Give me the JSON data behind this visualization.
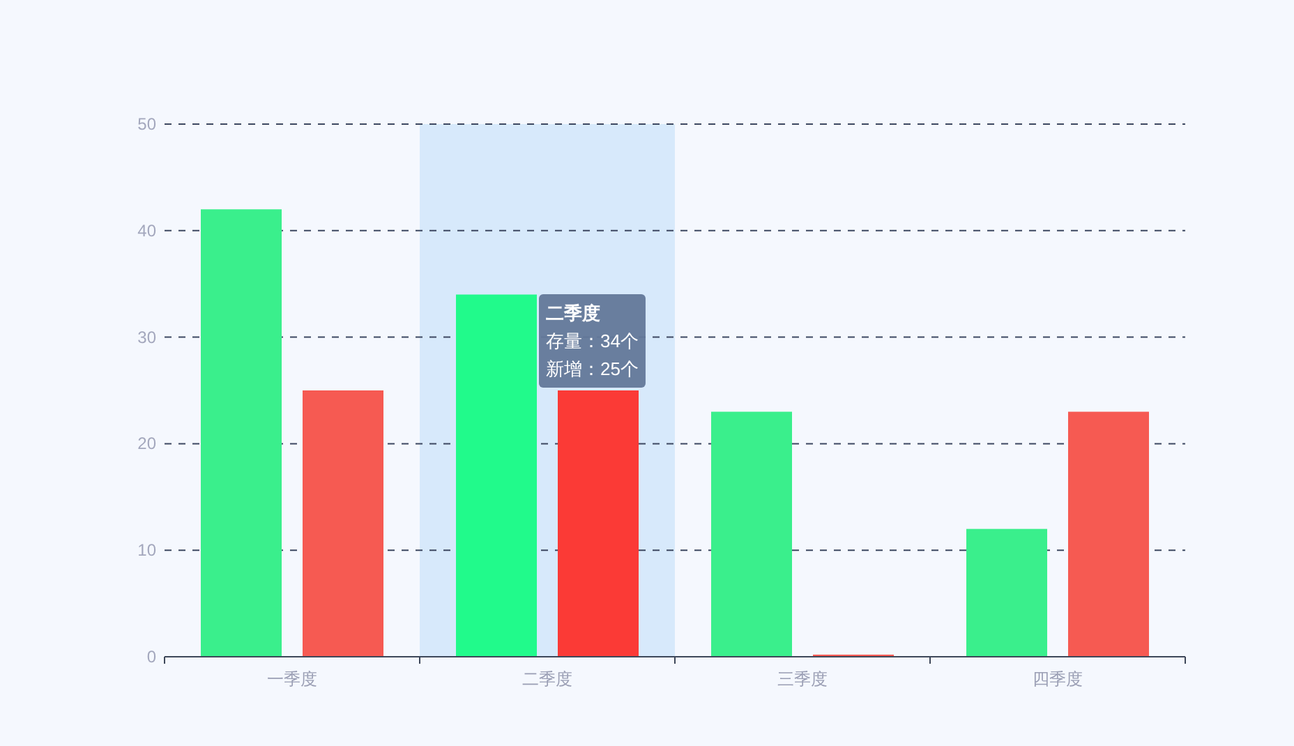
{
  "chart_data": {
    "type": "bar",
    "categories": [
      "一季度",
      "二季度",
      "三季度",
      "四季度"
    ],
    "series": [
      {
        "colors": [
          "#3aef8c",
          "#21fa8b",
          "#3aef8c",
          "#3aef8c"
        ],
        "values": [
          42,
          34,
          23,
          12
        ]
      },
      {
        "colors": [
          "#f65a52",
          "#fb3a36",
          "#f65a52",
          "#f65a52"
        ],
        "values": [
          25,
          25,
          0.2,
          23
        ]
      }
    ],
    "ylim": [
      0,
      50
    ],
    "yticks": [
      0,
      10,
      20,
      30,
      40,
      50
    ],
    "grid": "y",
    "bands": [
      {
        "axis": "x",
        "from": "二季度",
        "to": "二季度",
        "color": "#d7e9fb"
      }
    ],
    "annotations": [
      "二季度",
      "存量：34个",
      "新增：25个"
    ]
  }
}
